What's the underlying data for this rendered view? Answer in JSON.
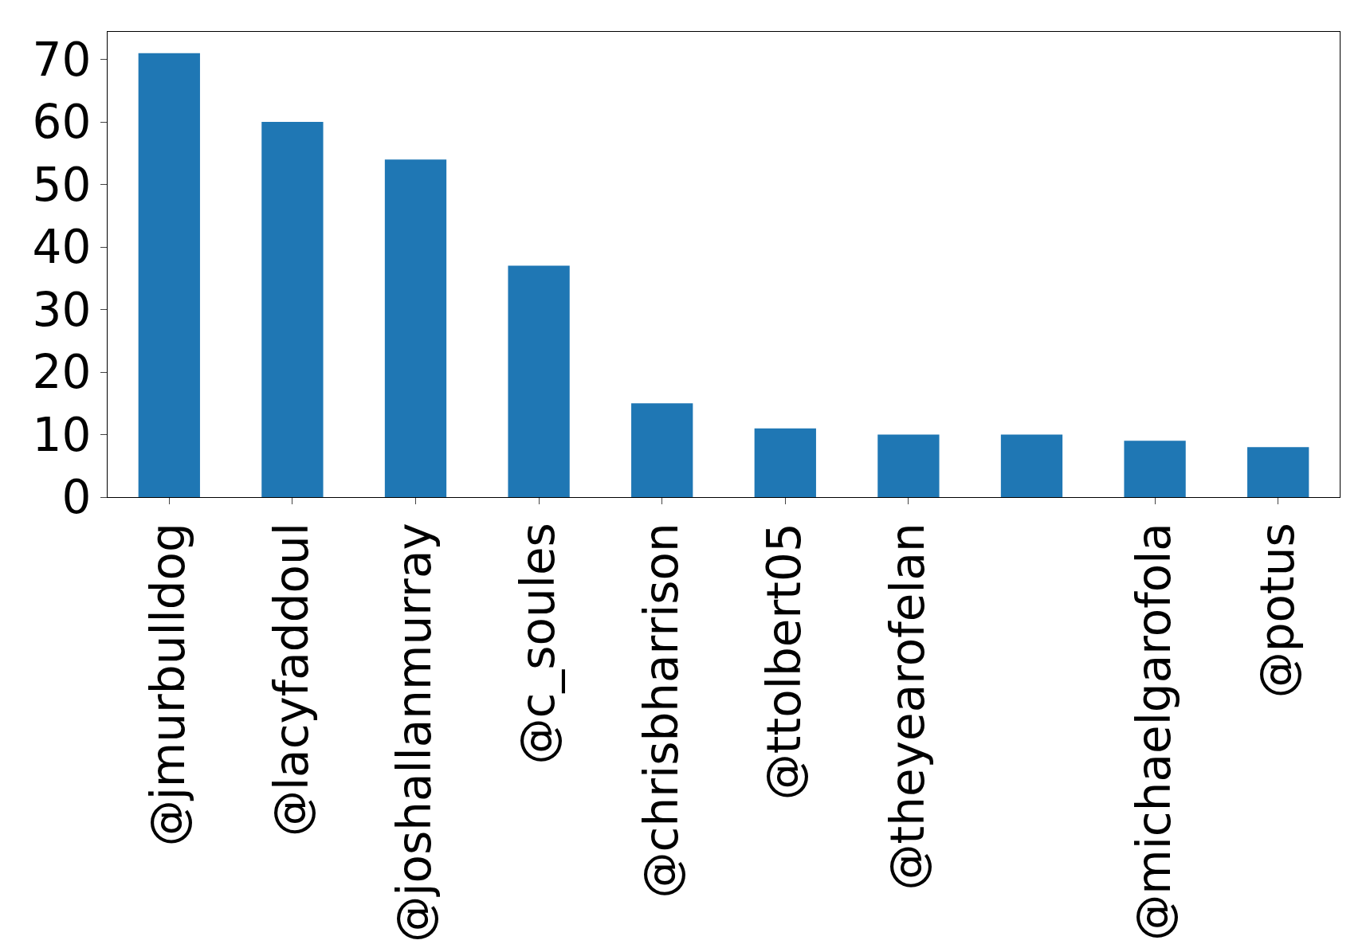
{
  "chart_data": {
    "type": "bar",
    "categories": [
      "@jmurbulldog",
      "@lacyfaddoul",
      "@joshallanmurray",
      "@c_soules",
      "@chrisbharrison",
      "@ttolbert05",
      "@theyearofelan",
      null,
      "@michaelgarofola",
      "@potus"
    ],
    "values": [
      71,
      60,
      54,
      37,
      15,
      11,
      10,
      10,
      9,
      8
    ],
    "color": "#1f77b4",
    "ylim": [
      0,
      74.4
    ],
    "yticks": [
      0,
      10,
      20,
      30,
      40,
      50,
      60,
      70
    ]
  }
}
